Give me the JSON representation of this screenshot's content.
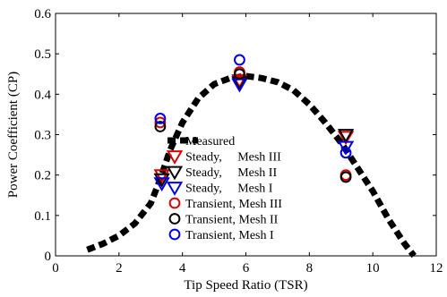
{
  "chart_data": {
    "type": "scatter",
    "xlabel": "Tip Speed Ratio (TSR)",
    "ylabel": "Power Coefficient (CP)",
    "xlim": [
      0,
      12
    ],
    "ylim": [
      0,
      0.6
    ],
    "xticks": [
      "0",
      "2",
      "4",
      "6",
      "8",
      "10",
      "12"
    ],
    "yticks": [
      "0",
      "0.1",
      "0.2",
      "0.3",
      "0.4",
      "0.5",
      "0.6"
    ],
    "grid": false,
    "legend_position": "center-left",
    "series": [
      {
        "name": "Measured",
        "marker": "thick-dashed-line",
        "color": "#000000",
        "x": [
          1.0,
          1.5,
          2.0,
          2.5,
          3.0,
          3.3,
          3.6,
          4.0,
          4.5,
          5.0,
          5.5,
          6.0,
          6.5,
          7.0,
          7.5,
          8.0,
          8.5,
          9.0,
          9.5,
          10.0,
          10.5,
          11.0,
          11.3
        ],
        "y": [
          0.015,
          0.03,
          0.05,
          0.08,
          0.13,
          0.19,
          0.26,
          0.33,
          0.39,
          0.425,
          0.44,
          0.445,
          0.44,
          0.43,
          0.41,
          0.375,
          0.33,
          0.28,
          0.22,
          0.16,
          0.09,
          0.03,
          0.0
        ]
      },
      {
        "name": "Steady,     Mesh III",
        "marker": "triangle-down",
        "color": "#e00000",
        "x": [
          3.35,
          5.8,
          9.15
        ],
        "y": [
          0.2,
          0.435,
          0.295
        ]
      },
      {
        "name": "Steady,     Mesh II",
        "marker": "triangle-down",
        "color": "#000000",
        "x": [
          3.35,
          5.8,
          9.15
        ],
        "y": [
          0.19,
          0.43,
          0.3
        ]
      },
      {
        "name": "Steady,     Mesh I",
        "marker": "triangle-down",
        "color": "#0000ee",
        "x": [
          3.35,
          5.8,
          9.15
        ],
        "y": [
          0.18,
          0.425,
          0.27
        ]
      },
      {
        "name": "Transient, Mesh III",
        "marker": "circle",
        "color": "#e00000",
        "x": [
          3.3,
          5.8,
          9.15
        ],
        "y": [
          0.33,
          0.455,
          0.2
        ]
      },
      {
        "name": "Transient, Mesh II",
        "marker": "circle",
        "color": "#000000",
        "x": [
          3.3,
          5.8,
          9.15
        ],
        "y": [
          0.32,
          0.45,
          0.195
        ]
      },
      {
        "name": "Transient, Mesh I",
        "marker": "circle",
        "color": "#0000ee",
        "x": [
          3.3,
          5.8,
          9.15
        ],
        "y": [
          0.34,
          0.485,
          0.255
        ]
      }
    ]
  }
}
